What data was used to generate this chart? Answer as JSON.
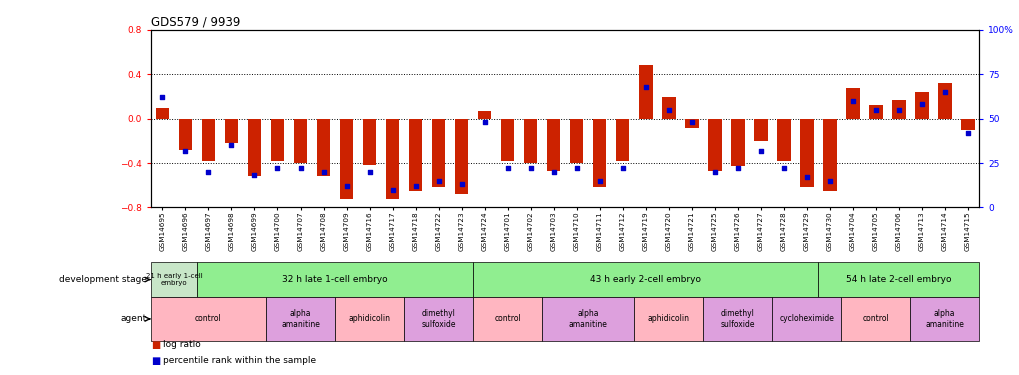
{
  "title": "GDS579 / 9939",
  "samples": [
    "GSM14695",
    "GSM14696",
    "GSM14697",
    "GSM14698",
    "GSM14699",
    "GSM14700",
    "GSM14707",
    "GSM14708",
    "GSM14709",
    "GSM14716",
    "GSM14717",
    "GSM14718",
    "GSM14722",
    "GSM14723",
    "GSM14724",
    "GSM14701",
    "GSM14702",
    "GSM14703",
    "GSM14710",
    "GSM14711",
    "GSM14712",
    "GSM14719",
    "GSM14720",
    "GSM14721",
    "GSM14725",
    "GSM14726",
    "GSM14727",
    "GSM14728",
    "GSM14729",
    "GSM14730",
    "GSM14704",
    "GSM14705",
    "GSM14706",
    "GSM14713",
    "GSM14714",
    "GSM14715"
  ],
  "log_ratio": [
    0.1,
    -0.28,
    -0.38,
    -0.22,
    -0.52,
    -0.38,
    -0.4,
    -0.52,
    -0.72,
    -0.42,
    -0.72,
    -0.65,
    -0.62,
    -0.68,
    0.07,
    -0.38,
    -0.4,
    -0.47,
    -0.4,
    -0.62,
    -0.38,
    0.48,
    0.2,
    -0.08,
    -0.47,
    -0.43,
    -0.2,
    -0.38,
    -0.62,
    -0.65,
    0.28,
    0.12,
    0.17,
    0.24,
    0.32,
    -0.1
  ],
  "percentile": [
    62,
    32,
    20,
    35,
    18,
    22,
    22,
    20,
    12,
    20,
    10,
    12,
    15,
    13,
    48,
    22,
    22,
    20,
    22,
    15,
    22,
    68,
    55,
    48,
    20,
    22,
    32,
    22,
    17,
    15,
    60,
    55,
    55,
    58,
    65,
    42
  ],
  "stage_labels": [
    "21 h early 1-cell\nembryo",
    "32 h late 1-cell embryo",
    "43 h early 2-cell embryo",
    "54 h late 2-cell embryo"
  ],
  "stage_starts": [
    0,
    2,
    14,
    29
  ],
  "stage_ends": [
    2,
    14,
    29,
    36
  ],
  "stage_colors": [
    "#c8e6c8",
    "#90EE90",
    "#90EE90",
    "#90EE90"
  ],
  "agent_labels": [
    "control",
    "alpha\namanitine",
    "aphidicolin",
    "dimethyl\nsulfoxide",
    "control",
    "alpha\namanitine",
    "aphidicolin",
    "dimethyl\nsulfoxide",
    "cycloheximide",
    "control",
    "alpha\namanitine"
  ],
  "agent_starts": [
    0,
    5,
    8,
    11,
    14,
    17,
    21,
    24,
    27,
    30,
    33
  ],
  "agent_ends": [
    5,
    8,
    11,
    14,
    17,
    21,
    24,
    27,
    30,
    33,
    36
  ],
  "agent_colors": [
    "#FFB6C1",
    "#DDA0DD",
    "#FFB6C1",
    "#DDA0DD",
    "#FFB6C1",
    "#DDA0DD",
    "#FFB6C1",
    "#DDA0DD",
    "#DDA0DD",
    "#FFB6C1",
    "#DDA0DD"
  ],
  "bar_color": "#CC2200",
  "dot_color": "#0000CC",
  "ylim": [
    -0.8,
    0.8
  ],
  "ylim_right": [
    0,
    100
  ],
  "yticks_left": [
    -0.8,
    -0.4,
    0.0,
    0.4,
    0.8
  ],
  "yticks_right": [
    0,
    25,
    50,
    75,
    100
  ],
  "dotted_lines": [
    -0.4,
    0.0,
    0.4
  ]
}
